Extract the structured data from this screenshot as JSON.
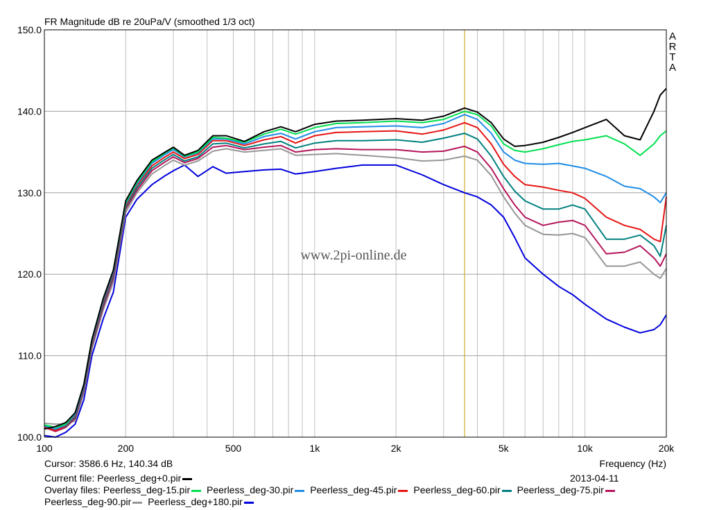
{
  "chart_data": {
    "type": "line",
    "title": "FR Magnitude dB re 20uPa/V (smoothed 1/3 oct)",
    "xlabel": "Frequency (Hz)",
    "ylabel": "",
    "xscale": "log",
    "xlim": [
      100,
      20000
    ],
    "ylim": [
      100,
      150
    ],
    "grid": true,
    "x_ticks": [
      100,
      200,
      500,
      1000,
      2000,
      5000,
      10000,
      20000
    ],
    "x_tick_labels": [
      "100",
      "200",
      "500",
      "1k",
      "2k",
      "5k",
      "10k",
      "20k"
    ],
    "y_ticks": [
      100,
      110,
      120,
      130,
      140,
      150
    ],
    "y_tick_labels": [
      "100.0",
      "110.0",
      "120.0",
      "130.0",
      "140.0",
      "150.0"
    ],
    "cursor_x": 3586.6,
    "watermark": "www.2pi-online.de",
    "side_label": "ARTA",
    "x": [
      100,
      110,
      120,
      130,
      140,
      150,
      165,
      180,
      200,
      220,
      250,
      280,
      300,
      330,
      370,
      420,
      470,
      550,
      650,
      750,
      850,
      1000,
      1200,
      1500,
      2000,
      2500,
      3000,
      3586,
      4000,
      4500,
      5000,
      5500,
      6000,
      7000,
      8000,
      9000,
      10000,
      12000,
      14000,
      16000,
      18000,
      19000,
      20000
    ],
    "series": [
      {
        "name": "Peerless_deg+0.pir",
        "color": "#000000",
        "values": [
          101.0,
          101.3,
          101.8,
          103.0,
          106.5,
          112.0,
          117.0,
          120.5,
          129.0,
          131.5,
          134.0,
          135.0,
          135.6,
          134.6,
          135.2,
          137.0,
          137.0,
          136.3,
          137.5,
          138.1,
          137.5,
          138.4,
          138.8,
          138.9,
          139.1,
          138.9,
          139.4,
          140.4,
          139.9,
          138.6,
          136.6,
          135.7,
          135.8,
          136.2,
          136.8,
          137.4,
          138.0,
          139.0,
          137.0,
          136.5,
          140.0,
          142.0,
          142.8
        ]
      },
      {
        "name": "Peerless_deg-15.pir",
        "color": "#00e050",
        "values": [
          101.5,
          101.2,
          101.6,
          103.0,
          106.5,
          112.0,
          117.0,
          120.5,
          128.8,
          131.3,
          133.8,
          134.9,
          135.5,
          134.5,
          135.0,
          136.8,
          136.7,
          136.2,
          137.2,
          137.8,
          137.2,
          138.0,
          138.5,
          138.6,
          138.8,
          138.6,
          139.0,
          140.0,
          139.6,
          138.2,
          136.0,
          135.2,
          135.0,
          135.4,
          135.9,
          136.3,
          136.5,
          137.0,
          136.0,
          134.6,
          136.0,
          137.0,
          137.6
        ]
      },
      {
        "name": "Peerless_deg-30.pir",
        "color": "#1e8ce6",
        "values": [
          101.4,
          101.0,
          101.5,
          102.8,
          106.3,
          111.8,
          116.8,
          120.3,
          128.6,
          131.1,
          133.6,
          134.7,
          135.3,
          134.4,
          134.9,
          136.6,
          136.6,
          136.0,
          136.9,
          137.3,
          136.6,
          137.5,
          138.0,
          138.1,
          138.2,
          138.0,
          138.5,
          139.6,
          139.0,
          137.3,
          135.0,
          134.0,
          133.6,
          133.5,
          133.6,
          133.3,
          133.0,
          132.0,
          130.8,
          130.5,
          129.5,
          128.8,
          130.0
        ]
      },
      {
        "name": "Peerless_deg-45.pir",
        "color": "#e61414",
        "values": [
          101.2,
          100.8,
          101.4,
          102.7,
          106.2,
          111.6,
          116.6,
          120.1,
          128.4,
          130.9,
          133.3,
          134.4,
          135.0,
          134.2,
          134.7,
          136.4,
          136.4,
          135.8,
          136.5,
          136.9,
          136.1,
          137.0,
          137.4,
          137.5,
          137.6,
          137.2,
          137.7,
          138.6,
          138.0,
          136.0,
          133.5,
          132.0,
          131.0,
          130.7,
          130.3,
          130.0,
          129.3,
          127.0,
          126.0,
          125.5,
          124.3,
          124.0,
          129.5
        ]
      },
      {
        "name": "Peerless_deg-60.pir",
        "color": "#008080",
        "values": [
          101.3,
          100.9,
          101.3,
          102.5,
          106.0,
          111.4,
          116.3,
          119.8,
          128.2,
          130.6,
          133.0,
          134.1,
          134.7,
          133.9,
          134.4,
          136.0,
          136.1,
          135.5,
          136.0,
          136.3,
          135.5,
          136.1,
          136.4,
          136.4,
          136.5,
          136.2,
          136.7,
          137.3,
          136.6,
          134.5,
          132.0,
          130.2,
          129.0,
          128.0,
          128.0,
          128.5,
          128.0,
          124.3,
          124.3,
          124.8,
          123.5,
          122.2,
          126.0
        ]
      },
      {
        "name": "Peerless_deg-75.pir",
        "color": "#b4145a",
        "values": [
          101.2,
          100.7,
          101.2,
          102.3,
          105.8,
          111.2,
          116.0,
          119.5,
          128.0,
          130.3,
          132.7,
          133.8,
          134.4,
          133.7,
          134.2,
          135.6,
          135.8,
          135.3,
          135.6,
          135.8,
          135.0,
          135.3,
          135.4,
          135.3,
          135.3,
          135.0,
          135.1,
          135.7,
          135.0,
          133.0,
          130.5,
          128.5,
          127.0,
          126.0,
          126.4,
          126.6,
          126.0,
          122.5,
          122.7,
          123.5,
          122.0,
          121.0,
          122.5
        ]
      },
      {
        "name": "Peerless_deg-90.pir",
        "color": "#969696",
        "values": [
          101.7,
          101.6,
          101.6,
          102.0,
          105.4,
          110.8,
          115.6,
          119.0,
          127.6,
          130.0,
          132.3,
          133.4,
          134.0,
          133.4,
          133.9,
          135.1,
          135.4,
          135.0,
          135.2,
          135.4,
          134.6,
          134.7,
          134.8,
          134.6,
          134.3,
          133.9,
          134.0,
          134.5,
          134.0,
          132.1,
          129.5,
          127.5,
          126.0,
          124.9,
          124.8,
          125.0,
          124.5,
          121.0,
          121.0,
          121.5,
          120.0,
          119.5,
          120.7
        ]
      },
      {
        "name": "Peerless_deg+180.pir",
        "color": "#0000dc",
        "values": [
          100.2,
          100.0,
          100.6,
          101.6,
          104.6,
          110.0,
          114.5,
          117.8,
          127.0,
          129.2,
          131.0,
          132.1,
          132.7,
          133.4,
          132.0,
          133.2,
          132.4,
          132.6,
          132.8,
          132.9,
          132.3,
          132.6,
          133.0,
          133.4,
          133.4,
          132.2,
          131.0,
          130.0,
          129.5,
          128.5,
          127.0,
          124.5,
          122.0,
          120.0,
          118.5,
          117.5,
          116.3,
          114.5,
          113.5,
          112.8,
          113.2,
          113.8,
          115.0
        ]
      }
    ]
  },
  "footer": {
    "cursor_text": "Cursor: 3586.6 Hz, 140.34 dB",
    "current_file_label": "Current file:",
    "current_file": "Peerless_deg+0.pir",
    "date": "2013-04-11",
    "overlay_label": "Overlay files:"
  }
}
